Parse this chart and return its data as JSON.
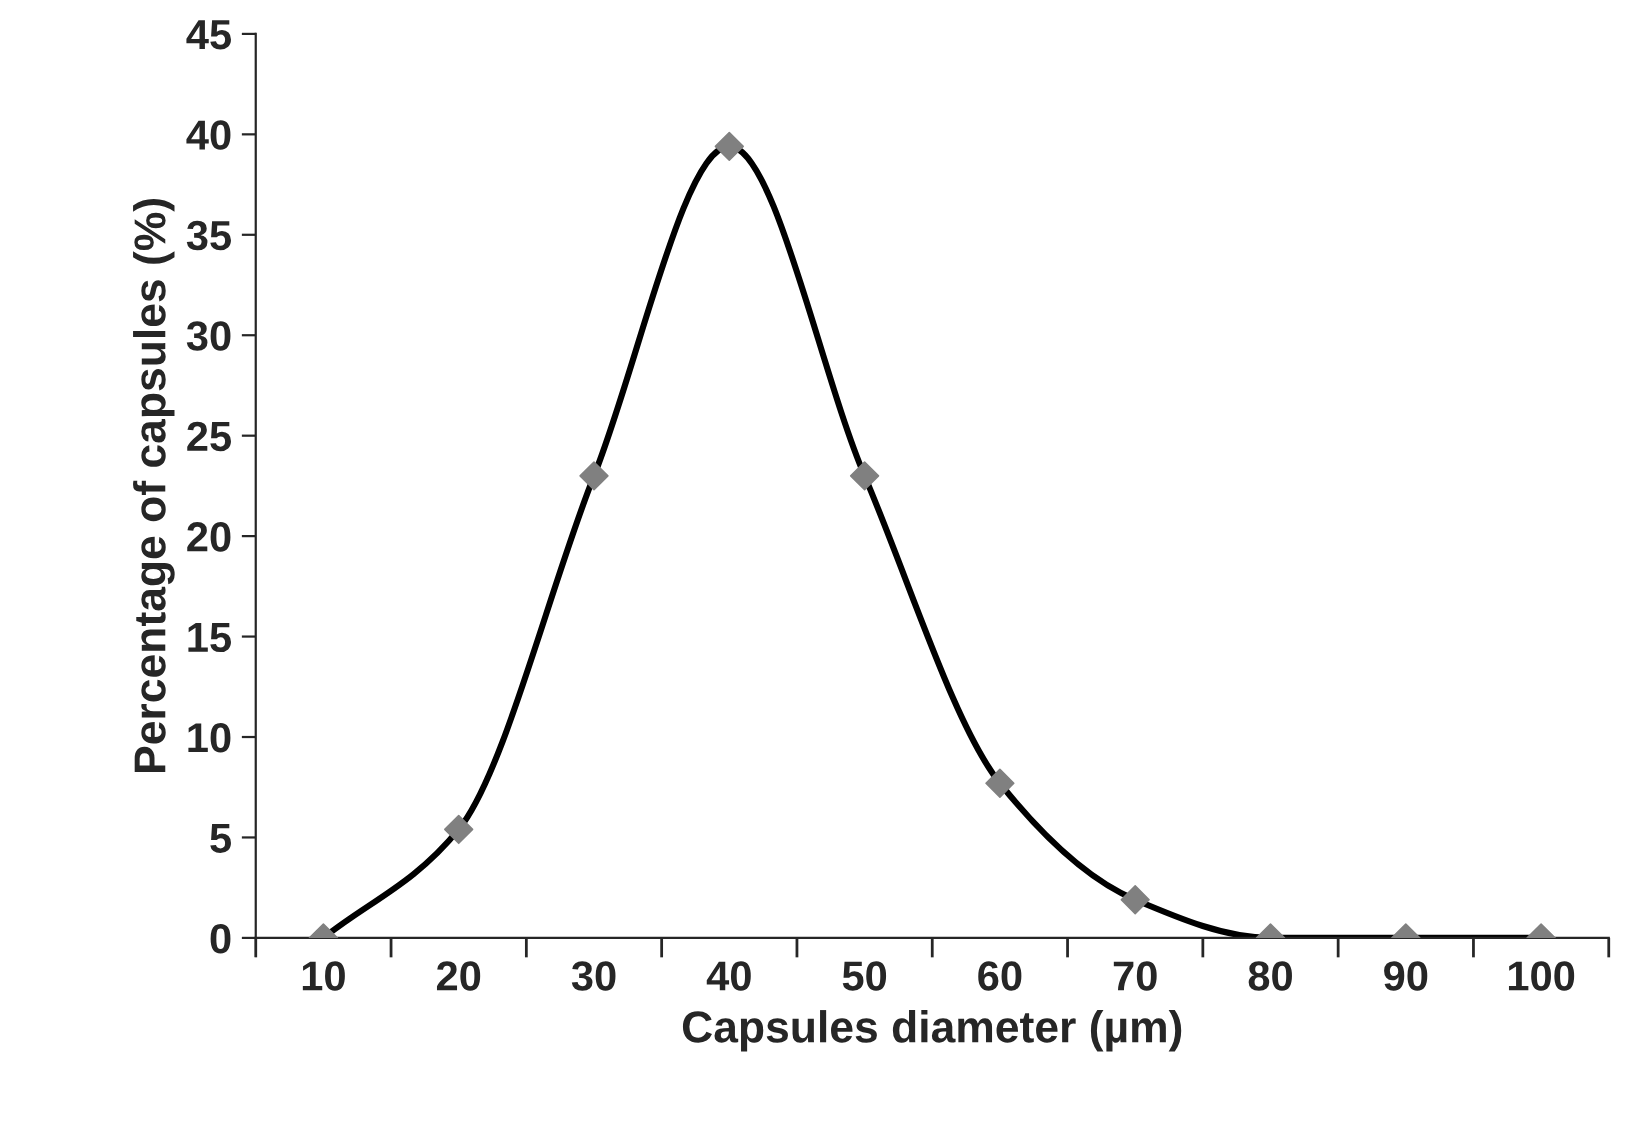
{
  "chart_data": {
    "type": "line",
    "xlabel": "Capsules diameter (µm)",
    "ylabel": "Percentage of capsules (%)",
    "categories": [
      "10",
      "20",
      "30",
      "40",
      "50",
      "60",
      "70",
      "80",
      "90",
      "100"
    ],
    "series": [
      {
        "color": "#000000",
        "marker": "none",
        "values": [
          0,
          5.4,
          23,
          39.4,
          23,
          7.7,
          1.9,
          0,
          0,
          0
        ]
      },
      {
        "type": "scatter",
        "color": "#808080",
        "marker": "diamond",
        "values": [
          0,
          5.4,
          23,
          39.4,
          23,
          7.7,
          1.9,
          0,
          0,
          0
        ]
      }
    ],
    "ylim": [
      0,
      45
    ],
    "yticks": [
      0,
      5,
      10,
      15,
      20,
      25,
      30,
      35,
      40,
      45
    ],
    "grid": false
  }
}
